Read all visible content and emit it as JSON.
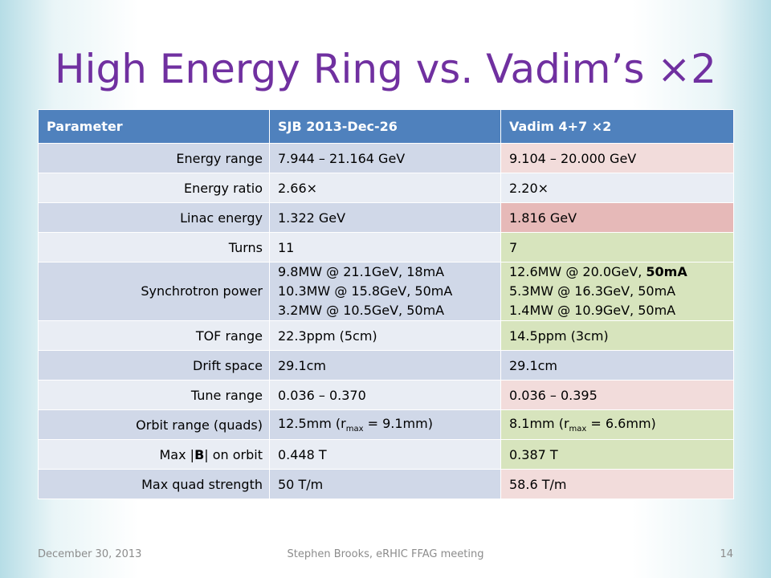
{
  "title": "High Energy Ring vs. Vadim’s ×2",
  "table": {
    "headers": [
      "Parameter",
      "SJB 2013-Dec-26",
      "Vadim 4+7 ×2"
    ],
    "rows": [
      {
        "label": "Energy range",
        "sjb": "7.944 – 21.164 GeV",
        "vadim": "9.104 – 20.000 GeV"
      },
      {
        "label": "Energy ratio",
        "sjb": "2.66×",
        "vadim": "2.20×"
      },
      {
        "label": "Linac energy",
        "sjb": "1.322 GeV",
        "vadim": "1.816 GeV"
      },
      {
        "label": "Turns",
        "sjb": "11",
        "vadim": "7"
      },
      {
        "label": "Synchrotron power",
        "sjb_lines": [
          "9.8MW @ 21.1GeV, 18mA",
          "10.3MW @ 15.8GeV, 50mA",
          "3.2MW @ 10.5GeV, 50mA"
        ],
        "vadim_line1_pre": "12.6MW @ 20.0GeV, ",
        "vadim_line1_bold": "50mA",
        "vadim_lines": [
          "5.3MW @ 16.3GeV, 50mA",
          "1.4MW @ 10.9GeV, 50mA"
        ]
      },
      {
        "label": "TOF range",
        "sjb": "22.3ppm (5cm)",
        "vadim": "14.5ppm (3cm)"
      },
      {
        "label": "Drift space",
        "sjb": "29.1cm",
        "vadim": "29.1cm"
      },
      {
        "label": "Tune range",
        "sjb": "0.036 – 0.370",
        "vadim": "0.036 – 0.395"
      },
      {
        "label": "Orbit range (quads)",
        "sjb_pre": "12.5mm (r",
        "sjb_sub": "max",
        "sjb_post": " = 9.1mm)",
        "vadim_pre": "8.1mm (r",
        "vadim_sub": "max",
        "vadim_post": " = 6.6mm)"
      },
      {
        "label_pre": "Max |",
        "label_bold": "B",
        "label_post": "| on orbit",
        "sjb": "0.448 T",
        "vadim": "0.387 T"
      },
      {
        "label": "Max quad strength",
        "sjb": "50 T/m",
        "vadim": "58.6 T/m"
      }
    ]
  },
  "footer": {
    "date": "December 30, 2013",
    "center": "Stephen Brooks, eRHIC FFAG meeting",
    "page": "14"
  },
  "colors": {
    "title": "#7030a0",
    "header_bg": "#4f81bd",
    "row_dark": "#d0d8e8",
    "row_light": "#e9edf4",
    "pink": "#f2dcdb",
    "rose": "#e6b9b8",
    "green": "#d7e4bd"
  }
}
